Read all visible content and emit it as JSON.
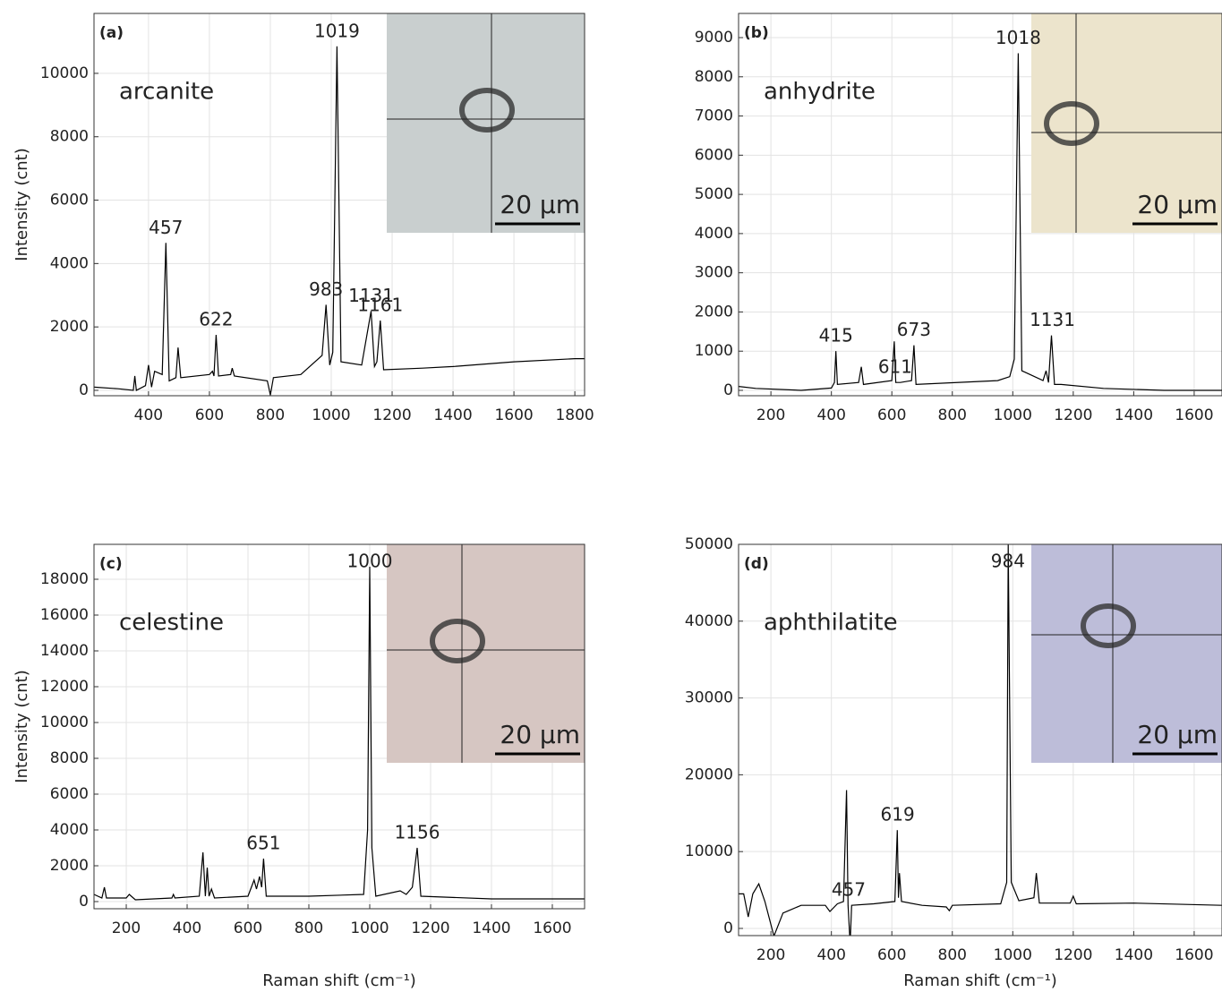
{
  "chart_data": [
    {
      "type": "line",
      "panel_label": "(a)",
      "title": "arcanite",
      "ylabel": "Intensity (cnt)",
      "inset_label": "20 µm",
      "color": "#000000",
      "grid": true,
      "x": [
        221,
        300,
        350,
        355,
        360,
        390,
        400,
        410,
        420,
        445,
        457,
        468,
        490,
        497,
        506,
        600,
        610,
        615,
        622,
        630,
        670,
        675,
        682,
        790,
        800,
        810,
        900,
        970,
        983,
        995,
        1005,
        1019,
        1032,
        1100,
        1131,
        1142,
        1150,
        1161,
        1172,
        1300,
        1400,
        1600,
        1800,
        1832
      ],
      "values": [
        100,
        50,
        0,
        450,
        0,
        150,
        800,
        100,
        600,
        500,
        4650,
        300,
        400,
        1350,
        400,
        500,
        600,
        450,
        1750,
        450,
        500,
        700,
        450,
        300,
        -150,
        400,
        500,
        1100,
        2700,
        800,
        1200,
        10850,
        900,
        800,
        2500,
        750,
        900,
        2200,
        650,
        700,
        750,
        900,
        1000,
        1000
      ],
      "annotations": [
        "457",
        "622",
        "983",
        "1019",
        "1131",
        "1161"
      ],
      "xlim": [
        221,
        1832
      ],
      "ylim": [
        -170,
        11890
      ],
      "xticks": [
        400,
        600,
        800,
        1000,
        1200,
        1400,
        1600,
        1800
      ],
      "yticks": [
        0,
        2000,
        4000,
        6000,
        8000,
        10000
      ]
    },
    {
      "type": "line",
      "panel_label": "(b)",
      "title": "anhydrite",
      "inset_label": "20 µm",
      "color": "#000000",
      "grid": true,
      "x": [
        93,
        150,
        300,
        400,
        410,
        415,
        420,
        490,
        499,
        506,
        600,
        608,
        613,
        628,
        665,
        673,
        680,
        950,
        990,
        1005,
        1018,
        1030,
        1100,
        1110,
        1118,
        1128,
        1138,
        1160,
        1300,
        1500,
        1692
      ],
      "values": [
        100,
        50,
        0,
        60,
        200,
        1000,
        150,
        200,
        600,
        150,
        250,
        1250,
        200,
        200,
        250,
        1150,
        150,
        250,
        350,
        800,
        8600,
        500,
        250,
        500,
        200,
        1400,
        150,
        150,
        50,
        0,
        0
      ],
      "annotations": [
        "415",
        "611",
        "673",
        "1018",
        "1131"
      ],
      "xlim": [
        93,
        1692
      ],
      "ylim": [
        -137,
        9617
      ],
      "xticks": [
        200,
        400,
        600,
        800,
        1000,
        1200,
        1400,
        1600
      ],
      "yticks": [
        0,
        1000,
        2000,
        3000,
        4000,
        5000,
        6000,
        7000,
        8000,
        9000
      ]
    },
    {
      "type": "line",
      "panel_label": "(c)",
      "title": "celestine",
      "ylabel": "Intensity (cnt)",
      "xlabel": "Raman shift (cm⁻¹)",
      "inset_label": "20 µm",
      "color": "#000000",
      "grid": true,
      "x": [
        94,
        120,
        128,
        135,
        200,
        210,
        230,
        350,
        355,
        360,
        440,
        452,
        460,
        466,
        472,
        480,
        490,
        600,
        620,
        628,
        638,
        645,
        651,
        660,
        800,
        980,
        993,
        1000,
        1007,
        1020,
        1100,
        1120,
        1140,
        1156,
        1168,
        1400,
        1706
      ],
      "values": [
        400,
        200,
        800,
        200,
        200,
        400,
        100,
        200,
        400,
        200,
        300,
        2750,
        300,
        1900,
        300,
        700,
        200,
        300,
        1200,
        700,
        1400,
        800,
        2400,
        300,
        300,
        400,
        4000,
        18700,
        3000,
        300,
        600,
        400,
        800,
        3000,
        300,
        150,
        150
      ],
      "annotations": [
        "651",
        "1000",
        "1156"
      ],
      "xlim": [
        94,
        1706
      ],
      "ylim": [
        -400,
        19950
      ],
      "xticks": [
        200,
        400,
        600,
        800,
        1000,
        1200,
        1400,
        1600
      ],
      "yticks": [
        0,
        2000,
        4000,
        6000,
        8000,
        10000,
        12000,
        14000,
        16000,
        18000
      ]
    },
    {
      "type": "line",
      "panel_label": "(d)",
      "title": "aphthilatite",
      "xlabel": "Raman shift (cm⁻¹)",
      "inset_label": "20 µm",
      "color": "#000000",
      "grid": true,
      "x": [
        93,
        110,
        125,
        140,
        160,
        180,
        210,
        240,
        300,
        380,
        395,
        420,
        440,
        450,
        455,
        462,
        467,
        540,
        610,
        618,
        622,
        625,
        632,
        700,
        780,
        790,
        800,
        960,
        980,
        985,
        995,
        1020,
        1070,
        1078,
        1088,
        1190,
        1200,
        1210,
        1400,
        1692
      ],
      "values": [
        4500,
        4500,
        1500,
        4500,
        5800,
        3500,
        -1000,
        2000,
        3000,
        3000,
        2200,
        3200,
        3500,
        18000,
        3000,
        -2000,
        3000,
        3200,
        3500,
        12800,
        4000,
        7200,
        3500,
        3000,
        2800,
        2300,
        3000,
        3200,
        6000,
        50000,
        6000,
        3600,
        4000,
        7200,
        3300,
        3300,
        4200,
        3200,
        3300,
        3000
      ],
      "annotations": [
        "457",
        "619",
        "984"
      ],
      "xlim": [
        93,
        1692
      ],
      "ylim": [
        -935,
        50000
      ],
      "xticks": [
        200,
        400,
        600,
        800,
        1000,
        1200,
        1400,
        1600
      ],
      "yticks": [
        0,
        10000,
        20000,
        30000,
        40000,
        50000
      ]
    }
  ]
}
